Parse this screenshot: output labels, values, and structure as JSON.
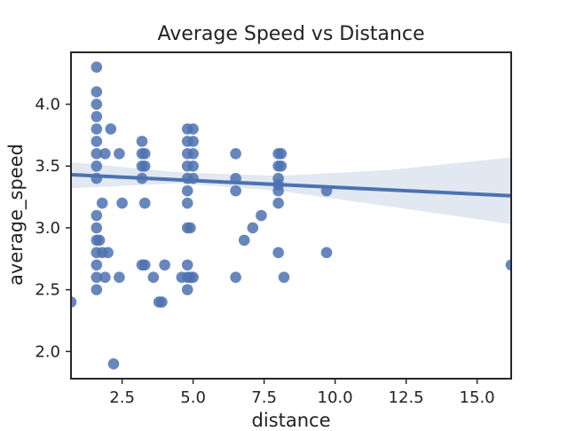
{
  "chart_data": {
    "type": "scatter",
    "title": "Average Speed vs Distance",
    "xlabel": "distance",
    "ylabel": "average_speed",
    "xlim": [
      0.7,
      16.2
    ],
    "ylim": [
      1.78,
      4.42
    ],
    "xticks": [
      "2.5",
      "5.0",
      "7.5",
      "10.0",
      "12.5",
      "15.0"
    ],
    "xtick_values": [
      2.5,
      5.0,
      7.5,
      10.0,
      12.5,
      15.0
    ],
    "yticks": [
      "2.0",
      "2.5",
      "3.0",
      "3.5",
      "4.0"
    ],
    "ytick_values": [
      2.0,
      2.5,
      3.0,
      3.5,
      4.0
    ],
    "grid": false,
    "point_color": "#4c72b0",
    "line_color": "#4c72b0",
    "band_color": "#c9d5e8",
    "regression": {
      "line": [
        [
          0.7,
          3.43
        ],
        [
          16.2,
          3.26
        ]
      ],
      "ci_upper": [
        [
          0.7,
          3.53
        ],
        [
          4.5,
          3.45
        ],
        [
          8.0,
          3.42
        ],
        [
          12.0,
          3.47
        ],
        [
          16.2,
          3.57
        ]
      ],
      "ci_lower": [
        [
          0.7,
          3.32
        ],
        [
          4.5,
          3.36
        ],
        [
          8.0,
          3.3
        ],
        [
          12.0,
          3.17
        ],
        [
          16.2,
          3.03
        ]
      ]
    },
    "points": [
      [
        0.7,
        2.4
      ],
      [
        1.6,
        4.3
      ],
      [
        1.6,
        4.1
      ],
      [
        1.6,
        4.0
      ],
      [
        1.6,
        3.9
      ],
      [
        1.6,
        3.8
      ],
      [
        1.6,
        3.7
      ],
      [
        1.6,
        3.6
      ],
      [
        1.6,
        3.5
      ],
      [
        1.6,
        3.4
      ],
      [
        1.6,
        3.1
      ],
      [
        1.6,
        3.0
      ],
      [
        1.6,
        2.9
      ],
      [
        1.6,
        2.8
      ],
      [
        1.6,
        2.7
      ],
      [
        1.6,
        2.6
      ],
      [
        1.6,
        2.5
      ],
      [
        1.7,
        2.9
      ],
      [
        1.8,
        3.2
      ],
      [
        1.8,
        2.8
      ],
      [
        1.9,
        3.6
      ],
      [
        1.9,
        2.6
      ],
      [
        2.0,
        2.8
      ],
      [
        2.1,
        3.8
      ],
      [
        2.2,
        1.9
      ],
      [
        2.4,
        3.6
      ],
      [
        2.4,
        2.6
      ],
      [
        2.5,
        3.2
      ],
      [
        3.2,
        3.7
      ],
      [
        3.2,
        3.6
      ],
      [
        3.2,
        3.5
      ],
      [
        3.2,
        3.4
      ],
      [
        3.2,
        2.7
      ],
      [
        3.3,
        3.6
      ],
      [
        3.3,
        3.5
      ],
      [
        3.3,
        3.2
      ],
      [
        3.3,
        2.7
      ],
      [
        3.6,
        2.6
      ],
      [
        3.8,
        2.4
      ],
      [
        3.9,
        2.4
      ],
      [
        4.0,
        2.7
      ],
      [
        4.6,
        2.6
      ],
      [
        4.8,
        3.8
      ],
      [
        4.8,
        3.7
      ],
      [
        4.8,
        3.6
      ],
      [
        4.8,
        3.5
      ],
      [
        4.8,
        3.4
      ],
      [
        4.8,
        3.3
      ],
      [
        4.8,
        3.2
      ],
      [
        4.8,
        3.0
      ],
      [
        4.8,
        2.7
      ],
      [
        4.8,
        2.6
      ],
      [
        4.8,
        2.5
      ],
      [
        4.9,
        3.0
      ],
      [
        4.9,
        2.6
      ],
      [
        5.0,
        3.8
      ],
      [
        5.0,
        3.7
      ],
      [
        5.0,
        3.6
      ],
      [
        5.0,
        3.5
      ],
      [
        5.0,
        3.4
      ],
      [
        5.0,
        2.6
      ],
      [
        6.5,
        3.6
      ],
      [
        6.5,
        3.4
      ],
      [
        6.5,
        3.3
      ],
      [
        6.5,
        2.6
      ],
      [
        6.8,
        2.9
      ],
      [
        7.1,
        3.0
      ],
      [
        7.4,
        3.1
      ],
      [
        8.0,
        3.6
      ],
      [
        8.0,
        3.5
      ],
      [
        8.0,
        3.4
      ],
      [
        8.0,
        3.35
      ],
      [
        8.0,
        3.3
      ],
      [
        8.0,
        3.2
      ],
      [
        8.0,
        2.8
      ],
      [
        8.1,
        3.6
      ],
      [
        8.1,
        3.5
      ],
      [
        8.2,
        2.6
      ],
      [
        9.7,
        3.3
      ],
      [
        9.7,
        2.8
      ],
      [
        16.2,
        2.7
      ]
    ]
  }
}
